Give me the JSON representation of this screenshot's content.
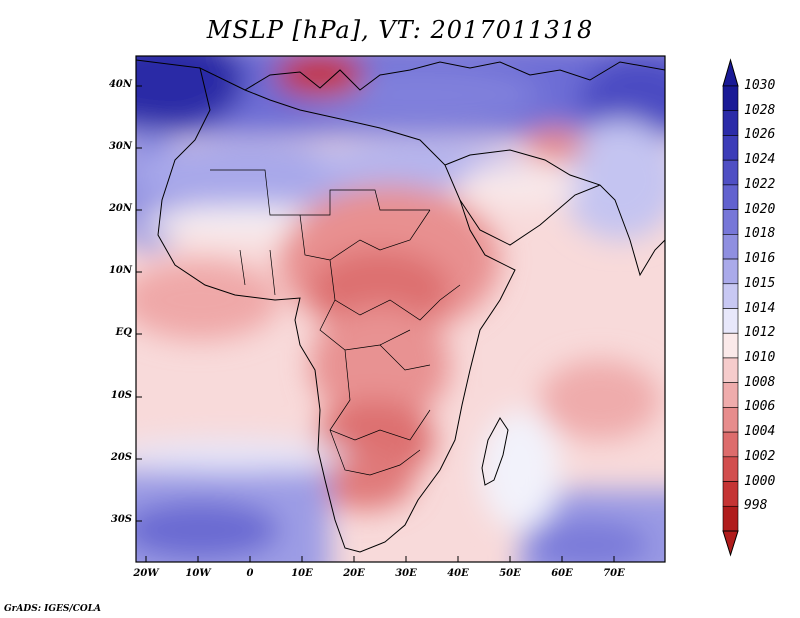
{
  "title": "MSLP [hPa], VT: 2017011318",
  "credit": "GrADS: IGES/COLA",
  "lat_labels": [
    "40N",
    "30N",
    "20N",
    "10N",
    "EQ",
    "10S",
    "20S",
    "30S"
  ],
  "lon_labels": [
    "20W",
    "10W",
    "0",
    "10E",
    "20E",
    "30E",
    "40E",
    "50E",
    "60E",
    "70E"
  ],
  "colorbar": {
    "levels": [
      "1030",
      "1028",
      "1026",
      "1024",
      "1022",
      "1020",
      "1018",
      "1016",
      "1015",
      "1014",
      "1012",
      "1010",
      "1008",
      "1006",
      "1004",
      "1002",
      "1000",
      "998"
    ],
    "colors": [
      "#1a1a96",
      "#2b2ba8",
      "#3c3cb8",
      "#4f4fc4",
      "#6262cf",
      "#7777d8",
      "#8f8fe0",
      "#aaaaea",
      "#c8c8f3",
      "#e8e8fb",
      "#fbeaea",
      "#f6cccc",
      "#efacac",
      "#e78c8c",
      "#dd6c6c",
      "#d24e4e",
      "#c53434",
      "#b01c1c"
    ]
  }
}
